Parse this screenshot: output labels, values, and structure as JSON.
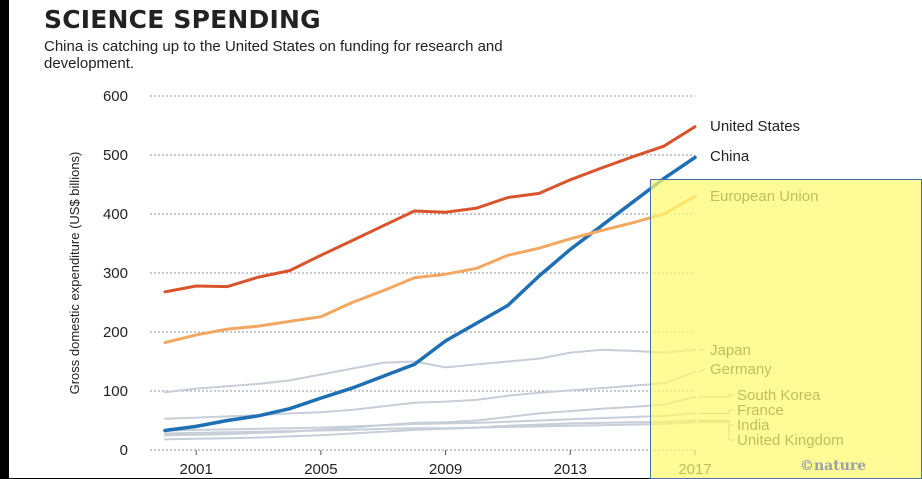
{
  "title": "SCIENCE SPENDING",
  "subtitle": "China is catching up to the United States on funding for research and development.",
  "credit": "©nature",
  "chart_data": {
    "type": "line",
    "ylabel": "Gross domestic expenditure (US$ billions)",
    "ylim": [
      0,
      600
    ],
    "yticks": [
      0,
      100,
      200,
      300,
      400,
      500,
      600
    ],
    "xticks": [
      2001,
      2005,
      2009,
      2013,
      2017
    ],
    "grid": "horizontal dotted",
    "legend": "direct labels at right",
    "x": [
      2000,
      2001,
      2002,
      2003,
      2004,
      2005,
      2006,
      2007,
      2008,
      2009,
      2010,
      2011,
      2012,
      2013,
      2014,
      2015,
      2016,
      2017
    ],
    "series": [
      {
        "name": "United States",
        "color": "#d9542c",
        "values": [
          268,
          278,
          277,
          293,
          304,
          330,
          355,
          380,
          405,
          403,
          410,
          428,
          435,
          458,
          478,
          497,
          515,
          548
        ]
      },
      {
        "name": "China",
        "color": "#1f6fb5",
        "values": [
          33,
          40,
          50,
          58,
          70,
          88,
          105,
          125,
          145,
          185,
          215,
          245,
          295,
          340,
          380,
          420,
          460,
          496
        ]
      },
      {
        "name": "European Union",
        "color": "#f2a861",
        "values": [
          182,
          195,
          205,
          210,
          218,
          226,
          250,
          270,
          292,
          298,
          308,
          330,
          342,
          358,
          372,
          385,
          400,
          430
        ]
      },
      {
        "name": "Japan",
        "color": "#c7ced7",
        "values": [
          98,
          104,
          108,
          112,
          118,
          128,
          138,
          148,
          150,
          140,
          145,
          150,
          155,
          165,
          170,
          168,
          165,
          170
        ]
      },
      {
        "name": "Germany",
        "color": "#c7ced7",
        "values": [
          53,
          55,
          57,
          59,
          62,
          64,
          68,
          74,
          80,
          82,
          85,
          92,
          97,
          101,
          105,
          109,
          113,
          132
        ]
      },
      {
        "name": "South Korea",
        "color": "#c7ced7",
        "values": [
          25,
          26,
          27,
          29,
          31,
          34,
          38,
          42,
          46,
          47,
          50,
          56,
          62,
          66,
          70,
          73,
          77,
          90
        ]
      },
      {
        "name": "France",
        "color": "#c7ced7",
        "values": [
          33,
          34,
          35,
          36,
          37,
          38,
          40,
          42,
          44,
          45,
          46,
          48,
          50,
          52,
          54,
          56,
          58,
          62
        ]
      },
      {
        "name": "India",
        "color": "#c7ced7",
        "values": [
          18,
          19,
          20,
          21,
          23,
          25,
          28,
          31,
          34,
          36,
          38,
          41,
          43,
          45,
          46,
          47,
          48,
          50
        ]
      },
      {
        "name": "United Kingdom",
        "color": "#c7ced7",
        "values": [
          28,
          29,
          30,
          31,
          32,
          33,
          34,
          36,
          37,
          37,
          38,
          39,
          40,
          41,
          42,
          43,
          44,
          47
        ]
      }
    ]
  }
}
